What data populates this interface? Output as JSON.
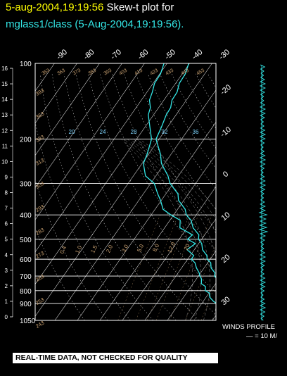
{
  "header": {
    "line1_date": "5-aug-2004,19:19:56",
    "line1_title": "Skew-t plot for",
    "line2_source": "mglass1/class (5-Aug-2004,19:19:56)."
  },
  "notice": "REAL-TIME DATA, NOT CHECKED FOR QUALITY",
  "winds": {
    "label": "WINDS PROFILE",
    "scale": "— = 10 M/"
  },
  "colors": {
    "background": "#000000",
    "title_date": "#ffff00",
    "title_text": "#ffffff",
    "profile": "#33e6e6",
    "grid": "#ffffff",
    "mixing_ratio": "#c8a070"
  },
  "chart_data": {
    "type": "line",
    "title": "Skew-t plot for mglass1/class (5-Aug-2004,19:19:56).",
    "pressure_levels": [
      100,
      200,
      300,
      400,
      500,
      600,
      700,
      800,
      900,
      1050
    ],
    "height_ticks_km": [
      16,
      15,
      14,
      13,
      12,
      11,
      10,
      9,
      8,
      7,
      6,
      5,
      4,
      3,
      2,
      1,
      0
    ],
    "isotherm_labels_top": [
      "-90",
      "-80",
      "-70",
      "-60",
      "-50",
      "-40",
      "-30"
    ],
    "isotherm_labels_right": [
      "-20",
      "-10",
      "0",
      "10",
      "20",
      "30"
    ],
    "mixing_ratio_labels": [
      "0.4",
      "1.0",
      "1.5",
      "2.0",
      "3.0",
      "5.0",
      "8.0",
      "12.0",
      "20"
    ],
    "dry_adiabat_labels": [
      "20",
      "24",
      "28",
      "32",
      "36"
    ],
    "theta_labels_left": [
      "393",
      "363",
      "333",
      "313",
      "303",
      "293",
      "283",
      "273",
      "263",
      "253",
      "243"
    ],
    "theta_labels_top": [
      "353",
      "363",
      "373",
      "383",
      "393",
      "403",
      "413",
      "423",
      "433",
      "443",
      "453"
    ],
    "ylim_pressure": [
      1050,
      100
    ],
    "xlim_temperature": [
      -40,
      40
    ],
    "series": [
      {
        "name": "",
        "pressure": [
          1000,
          980,
          950,
          920,
          900,
          880,
          850,
          820,
          800,
          770,
          750,
          720,
          700,
          680,
          650,
          620,
          600,
          580,
          550,
          520,
          500,
          480,
          450,
          420,
          400,
          380,
          350,
          330,
          300,
          280,
          250,
          230,
          200,
          180,
          160,
          150,
          140,
          130,
          120,
          110,
          100
        ],
        "values": [
          33,
          31,
          28,
          25,
          23,
          21,
          19,
          17,
          15,
          13,
          11,
          9,
          7.5,
          6,
          3.5,
          1,
          -1,
          -3,
          -6,
          -9,
          -11,
          -13,
          -17,
          -21,
          -24,
          -27,
          -32,
          -35,
          -41,
          -45,
          -51,
          -55,
          -61,
          -63,
          -64,
          -65,
          -66,
          -67,
          -68,
          -69,
          -70
        ]
      },
      {
        "name": "",
        "pressure": [
          1000,
          980,
          950,
          920,
          900,
          880,
          850,
          820,
          800,
          770,
          750,
          720,
          700,
          680,
          650,
          620,
          600,
          580,
          550,
          520,
          500,
          480,
          450,
          420,
          400,
          380,
          350,
          330,
          300,
          280,
          250,
          230,
          200,
          180,
          160,
          150,
          140,
          130,
          120,
          110,
          100
        ],
        "values": [
          22,
          21,
          21,
          20,
          17,
          14,
          12,
          10,
          8,
          6,
          4,
          2,
          1,
          -1,
          -3,
          -6,
          -8,
          -10,
          -12,
          -13,
          -15,
          -17,
          -22,
          -27,
          -30,
          -38,
          -40,
          -44,
          -48,
          -55,
          -59,
          -61,
          -63,
          -68,
          -72,
          -74,
          -76,
          -78,
          -79,
          -80,
          -81
        ]
      }
    ]
  }
}
